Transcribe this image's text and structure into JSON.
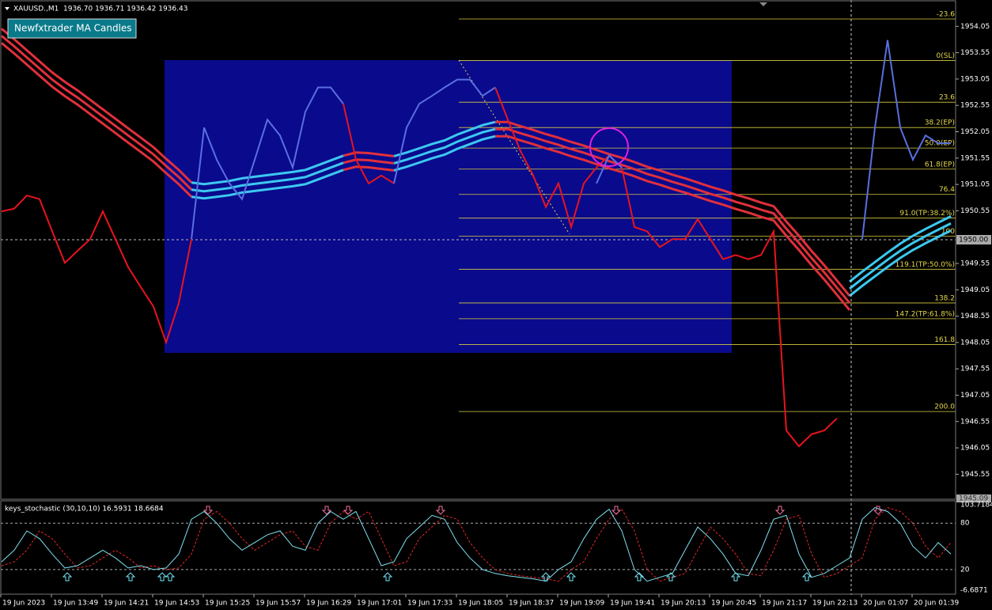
{
  "header": {
    "symbol": "XAUUSD.,M1",
    "quote": "1936.70 1936.71 1936.42 1936.43"
  },
  "button": {
    "label": "Newfxtrader MA Candles"
  },
  "price_axis": {
    "ylim": [
      1945.09,
      1954.55
    ],
    "ticks": [
      1954.05,
      1953.55,
      1953.05,
      1952.55,
      1952.05,
      1951.55,
      1951.05,
      1950.55,
      1949.55,
      1949.05,
      1948.55,
      1948.05,
      1947.55,
      1947.05,
      1946.55,
      1946.05,
      1945.55
    ],
    "current": {
      "value": 1950,
      "label": "1950.00"
    },
    "bottom": 1945.09
  },
  "price": {
    "series": [
      {
        "color": "#e8141e",
        "values": [
          1950.54,
          1950.59,
          1950.84,
          1950.77,
          1950.16,
          1949.56,
          1949.79,
          1950.01,
          1950.54,
          1950.01,
          1949.48,
          1949.1,
          1948.73,
          1948.05,
          1948.8,
          1950.01,
          null,
          null,
          null,
          null,
          null,
          null,
          null,
          null,
          null,
          null,
          null,
          1952.58,
          1951.52,
          1951.07,
          1951.22,
          1951.07,
          null,
          null,
          null,
          null,
          null,
          null,
          null,
          1952.89,
          1952.28,
          1951.68,
          1951.22,
          1950.62,
          1951.07,
          1950.24,
          1951.07,
          1951.37,
          1951.6,
          1951.37,
          1950.24,
          1950.16,
          1949.86,
          1950.01,
          1950.01,
          1950.39,
          1950.01,
          1949.63,
          1949.71,
          1949.63,
          1949.71,
          1950.16,
          1946.38,
          1946.08,
          1946.31,
          1946.38,
          1946.61,
          null,
          null,
          null,
          null,
          null,
          null,
          null,
          null,
          null
        ]
      },
      {
        "color": "#5a6fe0",
        "values": [
          null,
          null,
          null,
          null,
          null,
          null,
          null,
          null,
          null,
          null,
          null,
          null,
          null,
          null,
          null,
          1950.01,
          1952.13,
          1951.52,
          1951.07,
          1950.77,
          1951.52,
          1952.28,
          1951.98,
          1951.37,
          1952.43,
          1952.89,
          1952.89,
          1952.58,
          null,
          null,
          null,
          1951.07,
          1952.13,
          1952.58,
          1952.73,
          1952.89,
          1953.04,
          1953.04,
          1952.73,
          1952.89,
          null,
          null,
          null,
          null,
          null,
          null,
          null,
          1951.07,
          1951.6,
          1951.37,
          null,
          null,
          null,
          null,
          null,
          null,
          null,
          null,
          null,
          null,
          null,
          null,
          null,
          null,
          null,
          null,
          null,
          null,
          1950.01,
          1952.13,
          1953.79,
          1952.13,
          1951.52,
          1951.98,
          1951.83,
          1951.83
        ]
      }
    ]
  },
  "moving_average": {
    "series": [
      {
        "color": "#e0303c",
        "values": [
          1953.87,
          1953.67,
          1953.46,
          1953.25,
          1953.04,
          1952.86,
          1952.7,
          1952.52,
          1952.34,
          1952.16,
          1951.98,
          1951.8,
          1951.62,
          1951.4,
          1951.19,
          1950.95,
          null,
          null,
          null,
          null,
          null,
          null,
          null,
          null,
          null,
          null,
          null,
          1951.46,
          1951.52,
          1951.51,
          1951.48,
          1951.45,
          null,
          null,
          null,
          null,
          null,
          null,
          null,
          1952.1,
          1952.1,
          1952.02,
          1951.95,
          1951.87,
          1951.8,
          1951.72,
          1951.65,
          1951.57,
          1951.49,
          1951.42,
          1951.34,
          1951.25,
          1951.18,
          1951.1,
          1951.03,
          1950.95,
          1950.87,
          1950.8,
          1950.72,
          1950.65,
          1950.57,
          1950.5,
          1950.21,
          1949.94,
          1949.65,
          1949.38,
          1949.09,
          1948.8,
          null,
          null,
          null,
          null,
          null,
          null,
          null,
          null
        ]
      },
      {
        "color": "#3cc8f0",
        "values": [
          null,
          null,
          null,
          null,
          null,
          null,
          null,
          null,
          null,
          null,
          null,
          null,
          null,
          null,
          null,
          1950.95,
          1950.92,
          1950.95,
          1950.98,
          1951.03,
          1951.06,
          1951.09,
          1951.12,
          1951.15,
          1951.19,
          1951.28,
          1951.37,
          1951.46,
          null,
          null,
          null,
          1951.45,
          1951.52,
          1951.6,
          1951.68,
          1951.75,
          1951.86,
          1951.95,
          1952.04,
          1952.1,
          null,
          null,
          null,
          null,
          null,
          null,
          null,
          null,
          null,
          null,
          null,
          null,
          null,
          null,
          null,
          null,
          null,
          null,
          null,
          null,
          null,
          null,
          null,
          null,
          null,
          null,
          null,
          1949.07,
          1949.26,
          1949.44,
          1949.62,
          1949.79,
          1949.94,
          1950.07,
          1950.19,
          1950.31
        ]
      }
    ]
  },
  "fibonacci": {
    "levels": [
      {
        "label": "-23.6",
        "price": 1954.19
      },
      {
        "label": "0(SL)",
        "price": 1953.4
      },
      {
        "label": "23.6",
        "price": 1952.61
      },
      {
        "label": "38.2(EP)",
        "price": 1952.13
      },
      {
        "label": "50.0(EP)",
        "price": 1951.74
      },
      {
        "label": "61.8(EP)",
        "price": 1951.34
      },
      {
        "label": "76.4",
        "price": 1950.86
      },
      {
        "label": "91.0(TP:38.2%)",
        "price": 1950.41
      },
      {
        "label": "100",
        "price": 1950.07
      },
      {
        "label": "119.1(TP:50.0%)",
        "price": 1949.44
      },
      {
        "label": "138.2",
        "price": 1948.8
      },
      {
        "label": "147.2(TP:61.8%)",
        "price": 1948.5
      },
      {
        "label": "161.8",
        "price": 1948.01
      },
      {
        "label": "200.0",
        "price": 1946.74
      }
    ]
  },
  "stochastic": {
    "label": "keys_stochastic (30,10,10) 16.5931 18.6684",
    "ylim": [
      -6.6871,
      103.7184
    ],
    "ticks": [
      103.7184,
      80,
      20,
      -6.6871
    ],
    "main": [
      30,
      45,
      70,
      60,
      40,
      22,
      25,
      35,
      45,
      35,
      22,
      25,
      20,
      22,
      40,
      85,
      95,
      80,
      60,
      45,
      55,
      65,
      70,
      50,
      45,
      80,
      95,
      85,
      95,
      60,
      25,
      30,
      60,
      75,
      90,
      85,
      55,
      35,
      20,
      15,
      12,
      10,
      8,
      5,
      20,
      30,
      60,
      85,
      98,
      70,
      20,
      5,
      10,
      15,
      45,
      75,
      60,
      40,
      15,
      12,
      45,
      85,
      90,
      40,
      10,
      15,
      25,
      35,
      85,
      100,
      95,
      80,
      50,
      35,
      55,
      40
    ],
    "signal": [
      25,
      30,
      45,
      70,
      60,
      40,
      22,
      25,
      35,
      45,
      35,
      22,
      25,
      20,
      22,
      40,
      85,
      95,
      80,
      60,
      45,
      55,
      65,
      70,
      50,
      45,
      80,
      95,
      85,
      95,
      60,
      25,
      30,
      60,
      75,
      90,
      85,
      55,
      35,
      20,
      15,
      12,
      10,
      8,
      5,
      20,
      30,
      60,
      85,
      98,
      70,
      20,
      5,
      10,
      15,
      45,
      75,
      60,
      40,
      15,
      12,
      45,
      85,
      90,
      40,
      10,
      15,
      25,
      35,
      85,
      100,
      95,
      80,
      50,
      35,
      55
    ]
  },
  "time_axis": {
    "labels": [
      "19 Jun 2023",
      "19 Jun 13:49",
      "19 Jun 14:21",
      "19 Jun 14:53",
      "19 Jun 15:25",
      "19 Jun 15:57",
      "19 Jun 16:29",
      "19 Jun 17:01",
      "19 Jun 17:33",
      "19 Jun 18:05",
      "19 Jun 18:37",
      "19 Jun 19:09",
      "19 Jun 19:41",
      "19 Jun 20:13",
      "19 Jun 20:45",
      "19 Jun 21:17",
      "19 Jun 22:13",
      "20 Jun 01:07",
      "20 Jun 01:39"
    ]
  }
}
